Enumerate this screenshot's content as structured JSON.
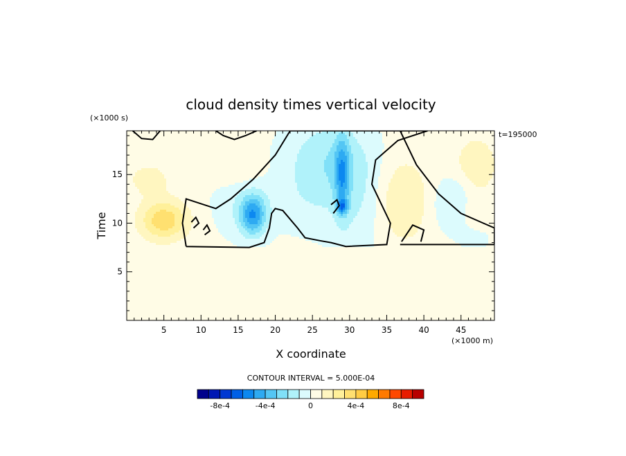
{
  "chart_data": {
    "type": "heatmap",
    "title": "cloud density times vertical velocity",
    "xlabel": "X coordinate",
    "ylabel": "Time",
    "x_unit": "(×1000 m)",
    "y_unit": "(×1000 s)",
    "time_stamp": "t=195000",
    "xlim": [
      0,
      49.5
    ],
    "ylim": [
      0,
      19.5
    ],
    "x_ticks": [
      5,
      10,
      15,
      20,
      25,
      30,
      35,
      40,
      45
    ],
    "y_ticks": [
      5,
      10,
      15
    ],
    "contour_interval_text": "CONTOUR INTERVAL = 5.000E-04",
    "contour_interval": 0.0005,
    "contour_zero_line": true,
    "colorbar": {
      "levels": [
        -0.001,
        -0.0009,
        -0.0008,
        -0.0007,
        -0.0006,
        -0.0005,
        -0.0004,
        -0.0003,
        -0.0002,
        -0.0001,
        0,
        0.0001,
        0.0002,
        0.0003,
        0.0004,
        0.0005,
        0.0006,
        0.0007,
        0.0008,
        0.0009,
        0.001
      ],
      "colors": [
        "#00008c",
        "#0018b4",
        "#0038d2",
        "#0060e6",
        "#0c88f0",
        "#2eaaf2",
        "#54c6f4",
        "#80e0f8",
        "#b0f2fa",
        "#dcfbfd",
        "#fffce6",
        "#fff6c0",
        "#fff09a",
        "#ffe070",
        "#ffcc44",
        "#ffaa00",
        "#ff7a00",
        "#ff4800",
        "#e81c00",
        "#b80000"
      ],
      "labels": [
        {
          "text": "-8e-4",
          "value": -0.0008
        },
        {
          "text": "-4e-4",
          "value": -0.0004
        },
        {
          "text": "0",
          "value": 0
        },
        {
          "text": "4e-4",
          "value": 0.0004
        },
        {
          "text": "8e-4",
          "value": 0.0008
        }
      ]
    },
    "features": [
      {
        "x": 17,
        "y": 10.8,
        "sx": 1.2,
        "sy": 1.4,
        "amp": -0.00045
      },
      {
        "x": 16,
        "y": 12,
        "sx": 3,
        "sy": 2.5,
        "amp": -0.00012
      },
      {
        "x": 29,
        "y": 15,
        "sx": 0.7,
        "sy": 2.8,
        "amp": -0.00035
      },
      {
        "x": 29,
        "y": 11.7,
        "sx": 0.5,
        "sy": 0.5,
        "amp": -0.00038
      },
      {
        "x": 27,
        "y": 16.5,
        "sx": 4,
        "sy": 3,
        "amp": -0.0002
      },
      {
        "x": 31,
        "y": 12,
        "sx": 3,
        "sy": 4,
        "amp": -0.00012
      },
      {
        "x": 24,
        "y": 12,
        "sx": 2.5,
        "sy": 2.5,
        "amp": -6e-05
      },
      {
        "x": 44,
        "y": 12,
        "sx": 2,
        "sy": 2,
        "amp": -0.00015
      },
      {
        "x": 47,
        "y": 8.6,
        "sx": 1.5,
        "sy": 1,
        "amp": -8e-05
      },
      {
        "x": 5,
        "y": 10.3,
        "sx": 2.2,
        "sy": 1.4,
        "amp": 0.00035
      },
      {
        "x": 3,
        "y": 14.5,
        "sx": 2,
        "sy": 1.2,
        "amp": 0.00012
      },
      {
        "x": 37,
        "y": 12.3,
        "sx": 2.6,
        "sy": 3,
        "amp": 0.00018
      },
      {
        "x": 47,
        "y": 16,
        "sx": 2,
        "sy": 2,
        "amp": 0.00015
      },
      {
        "x": 15,
        "y": 15.5,
        "sx": 2.5,
        "sy": 1.3,
        "amp": 0.0001
      },
      {
        "x": 47,
        "y": 11,
        "sx": 1.5,
        "sy": 1.5,
        "amp": 0.0001
      }
    ],
    "zero_contours": [
      [
        [
          8,
          7.6
        ],
        [
          16.5,
          7.5
        ],
        [
          18.5,
          8
        ],
        [
          19.2,
          9.5
        ],
        [
          19.5,
          11
        ],
        [
          20,
          11.5
        ],
        [
          21,
          11.3
        ],
        [
          23,
          9.5
        ],
        [
          24,
          8.5
        ],
        [
          26,
          8.2
        ],
        [
          27.5,
          8
        ],
        [
          29.5,
          7.6
        ],
        [
          35,
          7.8
        ],
        [
          35.5,
          10
        ],
        [
          33,
          14
        ],
        [
          33.5,
          16.5
        ],
        [
          36.5,
          18.5
        ],
        [
          40.5,
          19.5
        ],
        [
          22,
          19.5
        ],
        [
          20,
          17
        ],
        [
          17,
          14.5
        ],
        [
          14,
          12.5
        ],
        [
          12,
          11.5
        ],
        [
          8,
          12.5
        ],
        [
          7.5,
          10
        ],
        [
          8,
          7.6
        ]
      ],
      [
        [
          36.8,
          19.5
        ],
        [
          39,
          16
        ],
        [
          42,
          13
        ],
        [
          45,
          11
        ],
        [
          48,
          10
        ],
        [
          49.5,
          9.5
        ],
        [
          49.5,
          7.8
        ],
        [
          36.8,
          7.8
        ]
      ],
      [
        [
          0.8,
          19.5
        ],
        [
          2,
          18.7
        ],
        [
          3.5,
          18.6
        ],
        [
          4.5,
          19.5
        ]
      ],
      [
        [
          12,
          19.5
        ],
        [
          13,
          19
        ],
        [
          14.5,
          18.6
        ],
        [
          16,
          19
        ],
        [
          17.5,
          19.5
        ]
      ],
      [
        [
          37,
          8.1
        ],
        [
          38.5,
          9.8
        ],
        [
          40,
          9.3
        ],
        [
          39.6,
          8.1
        ]
      ],
      [
        [
          27.8,
          11
        ],
        [
          28.6,
          11.8
        ],
        [
          28.3,
          12.4
        ],
        [
          27.5,
          11.9
        ]
      ],
      [
        [
          9,
          9.5
        ],
        [
          9.7,
          10
        ],
        [
          9.3,
          10.6
        ],
        [
          8.7,
          10.1
        ]
      ],
      [
        [
          10.5,
          8.8
        ],
        [
          11.2,
          9.2
        ],
        [
          10.8,
          9.8
        ],
        [
          10.3,
          9.3
        ]
      ]
    ]
  }
}
